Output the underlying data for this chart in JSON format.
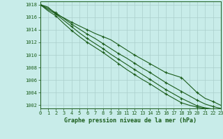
{
  "title": "Graphe pression niveau de la mer (hPa)",
  "background_color": "#c8ece9",
  "grid_color": "#aacfcc",
  "line_color": "#1a5c1a",
  "xlim": [
    0,
    23
  ],
  "ylim": [
    1001.5,
    1018.5
  ],
  "yticks": [
    1002,
    1004,
    1006,
    1008,
    1010,
    1012,
    1014,
    1016,
    1018
  ],
  "xticks": [
    0,
    1,
    2,
    3,
    4,
    5,
    6,
    7,
    8,
    9,
    10,
    11,
    12,
    13,
    14,
    15,
    16,
    17,
    18,
    19,
    20,
    21,
    22,
    23
  ],
  "series": [
    [
      1018.0,
      1017.6,
      1016.5,
      1015.9,
      1015.2,
      1014.6,
      1014.0,
      1013.4,
      1012.9,
      1012.4,
      1011.6,
      1010.8,
      1010.0,
      1009.3,
      1008.6,
      1007.9,
      1007.2,
      1006.8,
      1006.4,
      1005.2,
      1004.0,
      1003.1,
      1002.6,
      1002.0
    ],
    [
      1018.0,
      1017.4,
      1016.7,
      1015.8,
      1014.9,
      1014.1,
      1013.3,
      1012.6,
      1011.8,
      1011.0,
      1010.2,
      1009.5,
      1008.7,
      1007.9,
      1007.2,
      1006.4,
      1005.6,
      1004.9,
      1004.2,
      1003.5,
      1002.8,
      1002.2,
      1001.8,
      1001.5
    ],
    [
      1018.0,
      1017.2,
      1016.5,
      1015.5,
      1014.5,
      1013.5,
      1012.6,
      1011.8,
      1011.0,
      1010.1,
      1009.3,
      1008.5,
      1007.7,
      1006.9,
      1006.1,
      1005.3,
      1004.5,
      1003.8,
      1003.1,
      1002.5,
      1001.9,
      1001.6,
      1001.4,
      1001.2
    ],
    [
      1018.0,
      1017.0,
      1016.2,
      1015.0,
      1013.9,
      1012.9,
      1012.0,
      1011.2,
      1010.4,
      1009.5,
      1008.6,
      1007.7,
      1006.9,
      1006.1,
      1005.4,
      1004.6,
      1003.8,
      1003.1,
      1002.4,
      1002.0,
      1001.7,
      1001.5,
      1001.3,
      1001.0
    ]
  ],
  "marker": "+",
  "marker_size": 3.5,
  "linewidth": 0.8,
  "title_fontsize": 6.0,
  "tick_fontsize": 5.0
}
